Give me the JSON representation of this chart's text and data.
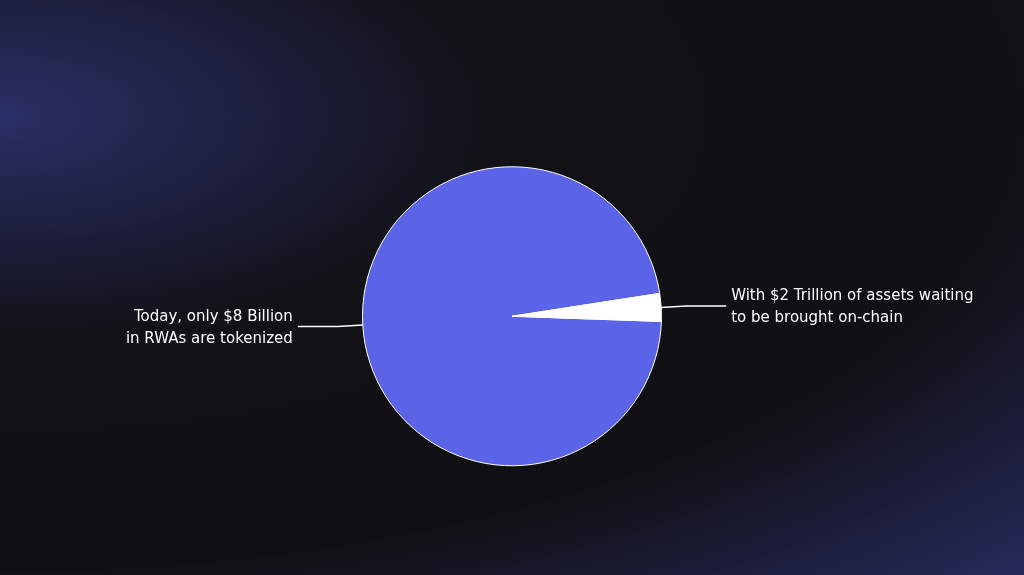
{
  "chart_data": {
    "type": "pie",
    "categories": [
      "Today, only $8 Billion\nin RWAs are tokenized",
      "With $2 Trillion of assets waiting\nto be brought on-chain"
    ],
    "values": [
      97,
      3
    ],
    "colors": [
      "#5b63e6",
      "#ffffff"
    ]
  }
}
